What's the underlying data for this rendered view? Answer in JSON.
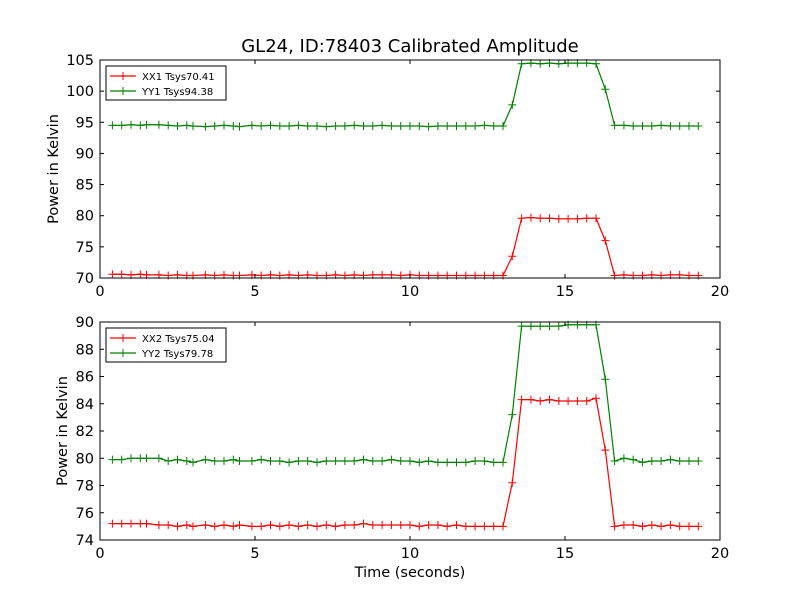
{
  "figure": {
    "title": "GL24, ID:78403 Calibrated Amplitude",
    "xlabel": "Time (seconds)"
  },
  "chart_data": [
    {
      "type": "line",
      "ylabel": "Power in Kelvin",
      "xlim": [
        0,
        20
      ],
      "ylim": [
        70,
        105
      ],
      "xticks": [
        0,
        5,
        10,
        15,
        20
      ],
      "yticks": [
        70,
        75,
        80,
        85,
        90,
        95,
        100,
        105
      ],
      "grid": false,
      "legend_position": "upper-left",
      "x": [
        0.4,
        0.7,
        1.0,
        1.3,
        1.5,
        1.9,
        2.2,
        2.5,
        2.8,
        3.0,
        3.4,
        3.7,
        4.0,
        4.3,
        4.5,
        4.9,
        5.2,
        5.5,
        5.8,
        6.1,
        6.4,
        6.7,
        7.0,
        7.3,
        7.6,
        7.9,
        8.2,
        8.5,
        8.8,
        9.1,
        9.4,
        9.7,
        10.0,
        10.3,
        10.6,
        10.9,
        11.2,
        11.5,
        11.8,
        12.1,
        12.4,
        12.7,
        13.0,
        13.3,
        13.6,
        13.9,
        14.2,
        14.5,
        14.8,
        15.1,
        15.4,
        15.7,
        16.0,
        16.3,
        16.6,
        16.9,
        17.2,
        17.5,
        17.8,
        18.1,
        18.4,
        18.7,
        19.0,
        19.3
      ],
      "series": [
        {
          "name": "XX1 Tsys70.41",
          "color": "#ff0000",
          "values": [
            70.6,
            70.6,
            70.5,
            70.6,
            70.5,
            70.5,
            70.4,
            70.5,
            70.4,
            70.4,
            70.5,
            70.4,
            70.5,
            70.4,
            70.4,
            70.5,
            70.4,
            70.5,
            70.4,
            70.5,
            70.4,
            70.5,
            70.4,
            70.4,
            70.5,
            70.4,
            70.5,
            70.4,
            70.5,
            70.5,
            70.5,
            70.4,
            70.5,
            70.4,
            70.4,
            70.4,
            70.4,
            70.4,
            70.4,
            70.4,
            70.4,
            70.4,
            70.4,
            73.5,
            79.6,
            79.7,
            79.6,
            79.6,
            79.5,
            79.5,
            79.5,
            79.6,
            79.6,
            76.0,
            70.4,
            70.5,
            70.4,
            70.4,
            70.5,
            70.4,
            70.5,
            70.5,
            70.4,
            70.4
          ]
        },
        {
          "name": "YY1 Tsys94.38",
          "color": "#008000",
          "values": [
            94.5,
            94.5,
            94.6,
            94.5,
            94.6,
            94.6,
            94.5,
            94.4,
            94.5,
            94.4,
            94.3,
            94.4,
            94.5,
            94.4,
            94.3,
            94.5,
            94.4,
            94.5,
            94.4,
            94.4,
            94.5,
            94.4,
            94.4,
            94.3,
            94.4,
            94.4,
            94.5,
            94.4,
            94.4,
            94.5,
            94.4,
            94.4,
            94.4,
            94.4,
            94.3,
            94.4,
            94.4,
            94.4,
            94.4,
            94.4,
            94.5,
            94.4,
            94.4,
            97.8,
            104.4,
            104.5,
            104.4,
            104.5,
            104.4,
            104.5,
            104.5,
            104.5,
            104.4,
            100.3,
            94.5,
            94.5,
            94.4,
            94.4,
            94.4,
            94.5,
            94.4,
            94.4,
            94.4,
            94.4
          ]
        }
      ]
    },
    {
      "type": "line",
      "ylabel": "Power in Kelvin",
      "xlim": [
        0,
        20
      ],
      "ylim": [
        74,
        90
      ],
      "xticks": [
        0,
        5,
        10,
        15,
        20
      ],
      "yticks": [
        74,
        76,
        78,
        80,
        82,
        84,
        86,
        88,
        90
      ],
      "grid": false,
      "legend_position": "upper-left",
      "x": [
        0.4,
        0.7,
        1.0,
        1.3,
        1.5,
        1.9,
        2.2,
        2.5,
        2.8,
        3.0,
        3.4,
        3.7,
        4.0,
        4.3,
        4.5,
        4.9,
        5.2,
        5.5,
        5.8,
        6.1,
        6.4,
        6.7,
        7.0,
        7.3,
        7.6,
        7.9,
        8.2,
        8.5,
        8.8,
        9.1,
        9.4,
        9.7,
        10.0,
        10.3,
        10.6,
        10.9,
        11.2,
        11.5,
        11.8,
        12.1,
        12.4,
        12.7,
        13.0,
        13.3,
        13.6,
        13.9,
        14.2,
        14.5,
        14.8,
        15.1,
        15.4,
        15.7,
        16.0,
        16.3,
        16.6,
        16.9,
        17.2,
        17.5,
        17.8,
        18.1,
        18.4,
        18.7,
        19.0,
        19.3
      ],
      "series": [
        {
          "name": "XX2 Tsys75.04",
          "color": "#ff0000",
          "values": [
            75.2,
            75.2,
            75.2,
            75.2,
            75.2,
            75.1,
            75.1,
            75.0,
            75.1,
            75.0,
            75.1,
            75.0,
            75.1,
            75.0,
            75.1,
            75.0,
            75.0,
            75.1,
            75.0,
            75.1,
            75.0,
            75.1,
            75.0,
            75.1,
            75.0,
            75.1,
            75.1,
            75.2,
            75.1,
            75.1,
            75.1,
            75.1,
            75.1,
            75.0,
            75.1,
            75.1,
            75.0,
            75.1,
            75.0,
            75.0,
            75.0,
            75.0,
            75.0,
            78.2,
            84.3,
            84.3,
            84.2,
            84.3,
            84.2,
            84.2,
            84.2,
            84.2,
            84.4,
            80.6,
            75.0,
            75.1,
            75.1,
            75.0,
            75.1,
            75.0,
            75.1,
            75.0,
            75.0,
            75.0
          ]
        },
        {
          "name": "YY2 Tsys79.78",
          "color": "#008000",
          "values": [
            79.9,
            79.9,
            80.0,
            80.0,
            80.0,
            80.0,
            79.8,
            79.9,
            79.8,
            79.7,
            79.9,
            79.8,
            79.8,
            79.9,
            79.8,
            79.8,
            79.9,
            79.8,
            79.8,
            79.7,
            79.8,
            79.8,
            79.7,
            79.8,
            79.8,
            79.8,
            79.8,
            79.9,
            79.8,
            79.8,
            79.9,
            79.8,
            79.8,
            79.7,
            79.8,
            79.7,
            79.7,
            79.7,
            79.7,
            79.8,
            79.8,
            79.7,
            79.7,
            83.2,
            89.7,
            89.7,
            89.7,
            89.7,
            89.7,
            89.8,
            89.8,
            89.8,
            89.8,
            85.8,
            79.8,
            80.0,
            79.9,
            79.7,
            79.8,
            79.8,
            79.9,
            79.8,
            79.8,
            79.8
          ]
        }
      ]
    }
  ]
}
